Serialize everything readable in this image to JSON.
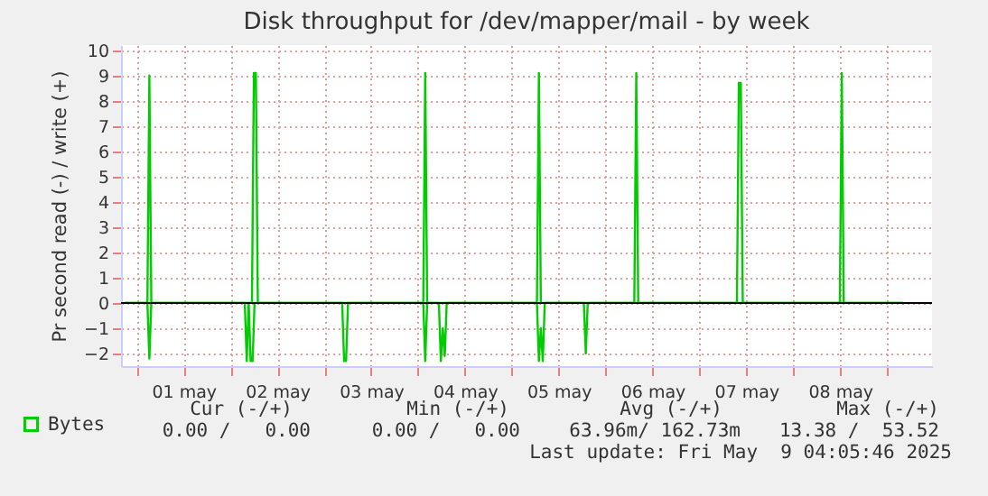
{
  "chart_data": {
    "type": "line",
    "title": "Disk throughput for /dev/mapper/mail - by week",
    "ylabel": "Pr second read (-) / write (+)",
    "xlim": [
      "2025-04-30T20:00",
      "2025-05-09T11:30"
    ],
    "xticks": [
      {
        "value": "2025-05-01T00:00",
        "label": null
      },
      {
        "value": "2025-05-01T12:00",
        "label": "01 may"
      },
      {
        "value": "2025-05-02T00:00",
        "label": null
      },
      {
        "value": "2025-05-02T12:00",
        "label": "02 may"
      },
      {
        "value": "2025-05-03T00:00",
        "label": null
      },
      {
        "value": "2025-05-03T12:00",
        "label": "03 may"
      },
      {
        "value": "2025-05-04T00:00",
        "label": null
      },
      {
        "value": "2025-05-04T12:00",
        "label": "04 may"
      },
      {
        "value": "2025-05-05T00:00",
        "label": null
      },
      {
        "value": "2025-05-05T12:00",
        "label": "05 may"
      },
      {
        "value": "2025-05-06T00:00",
        "label": null
      },
      {
        "value": "2025-05-06T12:00",
        "label": "06 may"
      },
      {
        "value": "2025-05-07T00:00",
        "label": null
      },
      {
        "value": "2025-05-07T12:00",
        "label": "07 may"
      },
      {
        "value": "2025-05-08T00:00",
        "label": null
      },
      {
        "value": "2025-05-08T12:00",
        "label": "08 may"
      },
      {
        "value": "2025-05-09T00:00",
        "label": null
      }
    ],
    "ylim": [
      -2.5,
      10.2
    ],
    "yticks": [
      -2,
      -1,
      0,
      1,
      2,
      3,
      4,
      5,
      6,
      7,
      8,
      9,
      10
    ],
    "grid": true,
    "legend": "bottom left",
    "line_style": "solid",
    "ref_lines": [
      {
        "axis": "y",
        "value": 0,
        "color": "#000000"
      }
    ],
    "series": [
      {
        "name": "Bytes",
        "color": "#00cc00",
        "x": [
          "2025-04-30T21:00",
          "2025-05-01T02:45",
          "2025-05-01T03:15",
          "2025-05-01T03:45",
          "2025-05-02T05:30",
          "2025-05-02T06:00",
          "2025-05-02T06:30",
          "2025-05-02T07:00",
          "2025-05-04T01:20",
          "2025-05-04T01:50",
          "2025-05-04T02:20",
          "2025-05-05T06:25",
          "2025-05-05T06:55",
          "2025-05-05T07:25",
          "2025-05-06T07:20",
          "2025-05-06T07:50",
          "2025-05-06T08:20",
          "2025-05-07T09:35",
          "2025-05-07T10:05",
          "2025-05-07T10:35",
          "2025-05-07T11:05",
          "2025-05-08T11:55",
          "2025-05-08T12:25",
          "2025-05-08T12:55",
          "2025-05-09T04:00"
        ],
        "values": [
          0,
          0,
          9.0,
          0,
          0,
          9.1,
          9.1,
          0,
          0,
          9.1,
          0,
          0,
          9.1,
          0,
          0,
          9.1,
          0,
          0,
          8.7,
          8.7,
          0,
          0,
          9.1,
          0,
          0
        ]
      },
      {
        "color": "#00cc00",
        "x": [
          "2025-04-30T21:00",
          "2025-05-01T02:45",
          "2025-05-01T03:15",
          "2025-05-01T03:45",
          "2025-05-02T03:40",
          "2025-05-02T04:10",
          "2025-05-02T04:40",
          "2025-05-02T05:10",
          "2025-05-02T05:40",
          "2025-05-02T06:10",
          "2025-05-03T04:35",
          "2025-05-03T05:05",
          "2025-05-03T05:35",
          "2025-05-03T06:05",
          "2025-05-04T01:20",
          "2025-05-04T01:50",
          "2025-05-04T02:20",
          "2025-05-04T05:20",
          "2025-05-04T05:50",
          "2025-05-04T06:20",
          "2025-05-04T06:50",
          "2025-05-04T07:20",
          "2025-05-05T06:25",
          "2025-05-05T06:55",
          "2025-05-05T07:25",
          "2025-05-05T07:55",
          "2025-05-05T08:25",
          "2025-05-05T18:25",
          "2025-05-05T18:55",
          "2025-05-05T19:25",
          "2025-05-09T04:00"
        ],
        "values": [
          0,
          0,
          -2.2,
          0,
          0,
          -2.3,
          0,
          -2.3,
          -2.3,
          0,
          0,
          -2.3,
          -2.3,
          0,
          0,
          -2.3,
          0,
          0,
          -2.3,
          -1.0,
          -2.1,
          0,
          0,
          -2.3,
          -1.0,
          -2.3,
          0,
          0,
          -2.0,
          0,
          0
        ]
      }
    ],
    "annotations": [
      "Cur (-/+)",
      "Min (-/+)",
      "Avg (-/+)",
      "Max (-/+)",
      "0.00 /   0.00",
      "0.00 /   0.00",
      "63.96m/ 162.73m",
      "13.38 /  53.52",
      "Last update: Fri May  9 04:05:46 2025"
    ]
  }
}
